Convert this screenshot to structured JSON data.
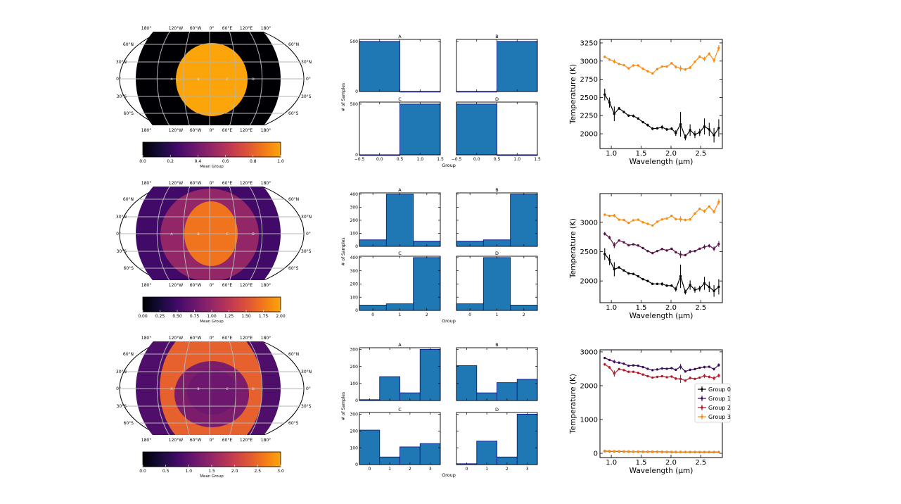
{
  "map_axes": {
    "lon_labels": [
      "180°",
      "120°W",
      "60°W",
      "0°",
      "60°E",
      "120°E",
      "180°"
    ],
    "lat_labels": [
      "60°N",
      "30°N",
      "0°",
      "30°S",
      "60°S"
    ],
    "point_labels": [
      "A",
      "B",
      "C",
      "D"
    ]
  },
  "chart_data": [
    {
      "type": "heatmap",
      "row": 1,
      "projection": "robinson",
      "colormap": "inferno",
      "regions": [
        {
          "mean_group": 0
        },
        {
          "mean_group": 1
        }
      ],
      "colorbar": {
        "label": "Mean Group",
        "range": [
          0,
          1
        ],
        "ticks": [
          "0.0",
          "0.2",
          "0.4",
          "0.6",
          "0.8",
          "1.0"
        ]
      }
    },
    {
      "type": "bar",
      "row": 1,
      "xlabel": "Group",
      "ylabel": "# of Samples",
      "bin_centers": [
        0,
        1
      ],
      "xlim": [
        -0.5,
        1.5
      ],
      "xticks": [
        "−0.5",
        "0.0",
        "0.5",
        "1.0",
        "1.5"
      ],
      "ylim": [
        0,
        520
      ],
      "yticks": [
        0,
        500
      ],
      "color": "#1f77b4",
      "panels": [
        {
          "title": "A",
          "values": [
            500,
            0
          ]
        },
        {
          "title": "B",
          "values": [
            0,
            500
          ]
        },
        {
          "title": "C",
          "values": [
            0,
            500
          ]
        },
        {
          "title": "D",
          "values": [
            500,
            0
          ]
        }
      ]
    },
    {
      "type": "line",
      "row": 1,
      "xlabel": "Wavelength (μm)",
      "ylabel": "Temperature (K)",
      "xlim": [
        0.81,
        2.86
      ],
      "xticks": [
        "1.0",
        "1.5",
        "2.0",
        "2.5"
      ],
      "ylim": [
        1797,
        3298
      ],
      "yticks": [
        "2000",
        "2250",
        "2500",
        "2750",
        "3000",
        "3250"
      ],
      "x": [
        0.89,
        0.97,
        1.05,
        1.13,
        1.21,
        1.29,
        1.37,
        1.45,
        1.53,
        1.61,
        1.69,
        1.77,
        1.85,
        1.93,
        2.01,
        2.08,
        2.16,
        2.24,
        2.32,
        2.4,
        2.48,
        2.56,
        2.64,
        2.72,
        2.8
      ],
      "series": [
        {
          "color": "#000000",
          "values": [
            2540,
            2430,
            2275,
            2350,
            2300,
            2250,
            2245,
            2210,
            2160,
            2120,
            2070,
            2075,
            2090,
            2060,
            2070,
            2010,
            2130,
            1950,
            2050,
            1990,
            2020,
            2100,
            2060,
            1980,
            2080
          ],
          "errors": [
            80,
            70,
            100,
            20,
            15,
            15,
            20,
            15,
            15,
            20,
            20,
            15,
            30,
            20,
            20,
            40,
            170,
            40,
            80,
            50,
            50,
            110,
            90,
            100,
            120
          ]
        },
        {
          "color": "#f98c10",
          "values": [
            3060,
            3020,
            2995,
            2960,
            2945,
            2900,
            2940,
            2940,
            2895,
            2860,
            2830,
            2890,
            2925,
            2925,
            2970,
            2920,
            2900,
            2885,
            2910,
            2990,
            3060,
            3030,
            3100,
            3010,
            3180
          ],
          "errors": [
            15,
            15,
            30,
            10,
            10,
            10,
            10,
            10,
            10,
            10,
            10,
            10,
            10,
            10,
            15,
            20,
            40,
            20,
            20,
            15,
            20,
            30,
            20,
            30,
            40
          ]
        }
      ]
    },
    {
      "type": "heatmap",
      "row": 2,
      "projection": "robinson",
      "colormap": "inferno",
      "regions": [
        {
          "mean_group": 0.5
        },
        {
          "mean_group": 1.0
        },
        {
          "mean_group": 1.72
        }
      ],
      "colorbar": {
        "label": "Mean Group",
        "range": [
          0,
          2
        ],
        "ticks": [
          "0.00",
          "0.25",
          "0.50",
          "0.75",
          "1.00",
          "1.25",
          "1.50",
          "1.75",
          "2.00"
        ]
      }
    },
    {
      "type": "bar",
      "row": 2,
      "xlabel": "Group",
      "ylabel": "# of Samples",
      "bin_centers": [
        0,
        1,
        2
      ],
      "xlim": [
        -0.5,
        2.5
      ],
      "xticks": [
        "0",
        "1",
        "2"
      ],
      "ylim": [
        0,
        410
      ],
      "yticks": [
        0,
        100,
        200,
        300,
        400
      ],
      "color": "#1f77b4",
      "panels": [
        {
          "title": "A",
          "values": [
            50,
            400,
            40
          ]
        },
        {
          "title": "B",
          "values": [
            40,
            50,
            400
          ]
        },
        {
          "title": "C",
          "values": [
            40,
            50,
            400
          ]
        },
        {
          "title": "D",
          "values": [
            50,
            400,
            40
          ]
        }
      ]
    },
    {
      "type": "line",
      "row": 2,
      "xlabel": "Wavelength (μm)",
      "ylabel": "Temperature (K)",
      "xlim": [
        0.81,
        2.86
      ],
      "xticks": [
        "1.0",
        "1.5",
        "2.0",
        "2.5"
      ],
      "ylim": [
        1630,
        3490
      ],
      "yticks": [
        "2000",
        "2500",
        "3000"
      ],
      "x": [
        0.89,
        0.97,
        1.05,
        1.13,
        1.21,
        1.29,
        1.37,
        1.45,
        1.53,
        1.61,
        1.69,
        1.77,
        1.85,
        1.93,
        2.01,
        2.08,
        2.16,
        2.24,
        2.32,
        2.4,
        2.48,
        2.56,
        2.64,
        2.72,
        2.8
      ],
      "series": [
        {
          "color": "#000000",
          "values": [
            2460,
            2360,
            2200,
            2230,
            2180,
            2130,
            2120,
            2080,
            2030,
            2000,
            1950,
            1950,
            1950,
            1920,
            1920,
            1860,
            2080,
            1810,
            1930,
            1850,
            1870,
            1960,
            1900,
            1830,
            1900
          ],
          "errors": [
            100,
            90,
            120,
            20,
            15,
            15,
            20,
            15,
            15,
            20,
            20,
            15,
            30,
            20,
            20,
            40,
            200,
            40,
            80,
            50,
            50,
            110,
            90,
            100,
            130
          ]
        },
        {
          "color": "#5a1248",
          "values": [
            2805,
            2740,
            2610,
            2690,
            2660,
            2610,
            2625,
            2605,
            2560,
            2510,
            2475,
            2510,
            2545,
            2520,
            2550,
            2490,
            2450,
            2440,
            2500,
            2510,
            2550,
            2580,
            2600,
            2550,
            2630
          ],
          "errors": [
            30,
            30,
            50,
            15,
            10,
            10,
            10,
            10,
            10,
            10,
            15,
            10,
            10,
            10,
            10,
            15,
            60,
            20,
            30,
            20,
            20,
            40,
            30,
            40,
            50
          ]
        },
        {
          "color": "#f98c10",
          "values": [
            3130,
            3110,
            3115,
            3045,
            3040,
            2990,
            3035,
            3045,
            3000,
            2975,
            2945,
            3010,
            3050,
            3065,
            3110,
            3055,
            3055,
            3040,
            3050,
            3150,
            3230,
            3190,
            3270,
            3180,
            3350
          ],
          "errors": [
            15,
            15,
            30,
            10,
            10,
            10,
            10,
            10,
            10,
            10,
            10,
            10,
            10,
            10,
            15,
            20,
            50,
            20,
            20,
            15,
            20,
            30,
            20,
            30,
            50
          ]
        }
      ]
    },
    {
      "type": "heatmap",
      "row": 3,
      "projection": "robinson",
      "colormap": "inferno",
      "regions": [
        {
          "mean_group": 0.86
        },
        {
          "mean_group": 2.4
        },
        {
          "mean_group": 1.28
        },
        {
          "mean_group": 1.15
        }
      ],
      "colorbar": {
        "label": "Mean Group",
        "range": [
          0,
          3
        ],
        "ticks": [
          "0.0",
          "0.5",
          "1.0",
          "1.5",
          "2.0",
          "2.5",
          "3.0"
        ]
      }
    },
    {
      "type": "bar",
      "row": 3,
      "xlabel": "Group",
      "ylabel": "# of Samples",
      "bin_centers": [
        0,
        1,
        2,
        3
      ],
      "xlim": [
        -0.5,
        3.5
      ],
      "xticks": [
        "0",
        "1",
        "2",
        "3"
      ],
      "ylim": [
        0,
        310
      ],
      "yticks": [
        0,
        100,
        200,
        300
      ],
      "color": "#1f77b4",
      "panels": [
        {
          "title": "A",
          "values": [
            5,
            140,
            45,
            300
          ]
        },
        {
          "title": "B",
          "values": [
            205,
            45,
            105,
            125
          ]
        },
        {
          "title": "C",
          "values": [
            205,
            45,
            105,
            125
          ]
        },
        {
          "title": "D",
          "values": [
            5,
            140,
            45,
            300
          ]
        }
      ]
    },
    {
      "type": "line",
      "row": 3,
      "xlabel": "Wavelength (μm)",
      "ylabel": "Temperature (K)",
      "xlim": [
        0.81,
        2.86
      ],
      "xticks": [
        "1.0",
        "1.5",
        "2.0",
        "2.5"
      ],
      "ylim": [
        -125,
        3060
      ],
      "yticks": [
        "0",
        "1000",
        "2000",
        "3000"
      ],
      "legend_position": "center-right",
      "x": [
        0.89,
        0.97,
        1.05,
        1.13,
        1.21,
        1.29,
        1.37,
        1.45,
        1.53,
        1.61,
        1.69,
        1.77,
        1.85,
        1.93,
        2.01,
        2.08,
        2.16,
        2.24,
        2.32,
        2.4,
        2.48,
        2.56,
        2.64,
        2.72,
        2.8
      ],
      "series": [
        {
          "name": "Group 0",
          "color": "#000000",
          "values": [
            65,
            60,
            57,
            55,
            52,
            50,
            49,
            48,
            46,
            45,
            44,
            43,
            42,
            41,
            40,
            39,
            39,
            38,
            37,
            37,
            36,
            35,
            35,
            34,
            34
          ],
          "errors": [
            5,
            5,
            5,
            5,
            5,
            5,
            5,
            5,
            5,
            5,
            5,
            5,
            5,
            5,
            5,
            5,
            5,
            5,
            5,
            5,
            5,
            5,
            5,
            5,
            5
          ]
        },
        {
          "name": "Group 1",
          "color": "#3d0d5a",
          "values": [
            2820,
            2760,
            2710,
            2680,
            2650,
            2590,
            2600,
            2590,
            2550,
            2500,
            2460,
            2480,
            2510,
            2500,
            2520,
            2470,
            2560,
            2420,
            2470,
            2490,
            2530,
            2550,
            2560,
            2490,
            2610
          ],
          "errors": [
            30,
            30,
            50,
            15,
            10,
            10,
            10,
            10,
            10,
            10,
            15,
            10,
            10,
            10,
            10,
            15,
            80,
            20,
            30,
            20,
            20,
            40,
            30,
            40,
            50
          ]
        },
        {
          "name": "Group 2",
          "color": "#b8182c",
          "values": [
            2630,
            2540,
            2360,
            2490,
            2460,
            2410,
            2410,
            2380,
            2330,
            2280,
            2240,
            2260,
            2280,
            2250,
            2270,
            2210,
            2200,
            2150,
            2230,
            2200,
            2240,
            2290,
            2260,
            2220,
            2300
          ],
          "errors": [
            40,
            40,
            90,
            20,
            15,
            15,
            15,
            15,
            15,
            15,
            20,
            15,
            15,
            15,
            15,
            40,
            120,
            30,
            40,
            30,
            30,
            60,
            40,
            60,
            60
          ]
        },
        {
          "name": "Group 3",
          "color": "#f98c10",
          "values": [
            70,
            65,
            60,
            58,
            55,
            53,
            52,
            50,
            48,
            46,
            45,
            44,
            43,
            42,
            41,
            40,
            40,
            39,
            38,
            38,
            37,
            36,
            36,
            35,
            35
          ],
          "errors": [
            5,
            5,
            5,
            5,
            5,
            5,
            5,
            5,
            5,
            5,
            5,
            5,
            5,
            5,
            5,
            5,
            5,
            5,
            5,
            5,
            5,
            5,
            5,
            5,
            5
          ]
        }
      ]
    }
  ]
}
